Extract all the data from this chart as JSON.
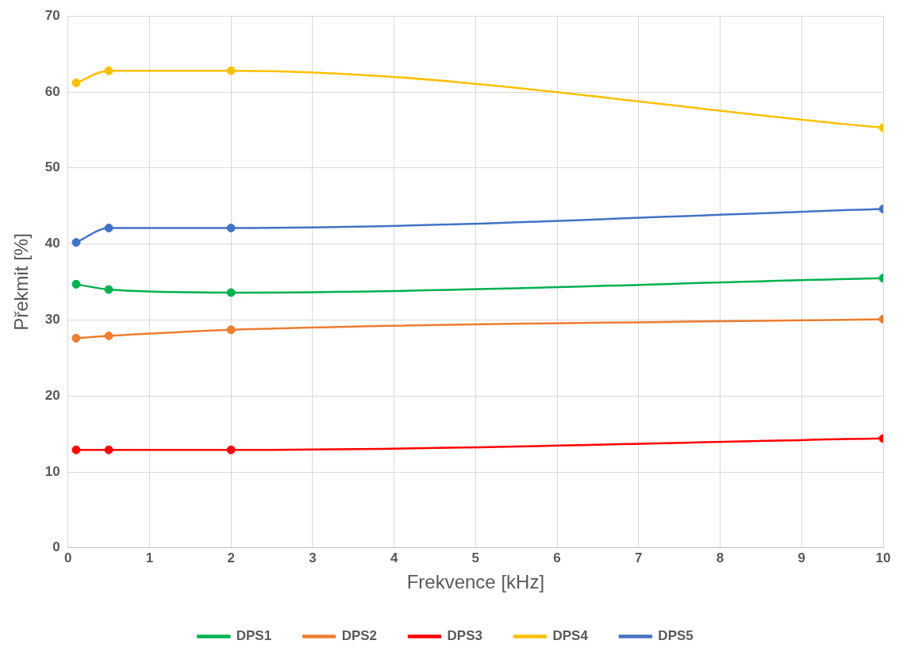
{
  "chart_data": {
    "type": "line",
    "xlabel": "Frekvence [kHz]",
    "ylabel": "Překmit [%]",
    "x": [
      0.1,
      0.5,
      2,
      10
    ],
    "series": [
      {
        "name": "DPS1",
        "color": "#00b050",
        "values": [
          34.7,
          34.0,
          33.6,
          35.5
        ]
      },
      {
        "name": "DPS2",
        "color": "#ed7d31",
        "values": [
          27.6,
          27.9,
          28.7,
          30.1
        ]
      },
      {
        "name": "DPS3",
        "color": "#ff0000",
        "values": [
          12.9,
          12.9,
          12.9,
          14.4
        ]
      },
      {
        "name": "DPS4",
        "color": "#ffc000",
        "values": [
          61.2,
          62.8,
          62.8,
          55.3
        ]
      },
      {
        "name": "DPS5",
        "color": "#4472c4",
        "values": [
          40.2,
          42.1,
          42.1,
          44.6
        ]
      }
    ],
    "xlim": [
      0,
      10
    ],
    "xticks": [
      0,
      1,
      2,
      3,
      4,
      5,
      6,
      7,
      8,
      9,
      10
    ],
    "ylim": [
      0,
      70
    ],
    "yticks": [
      0,
      10,
      20,
      30,
      40,
      50,
      60,
      70
    ],
    "grid": true,
    "legend": "bottom",
    "marker": "circle",
    "line_style": "solid"
  }
}
